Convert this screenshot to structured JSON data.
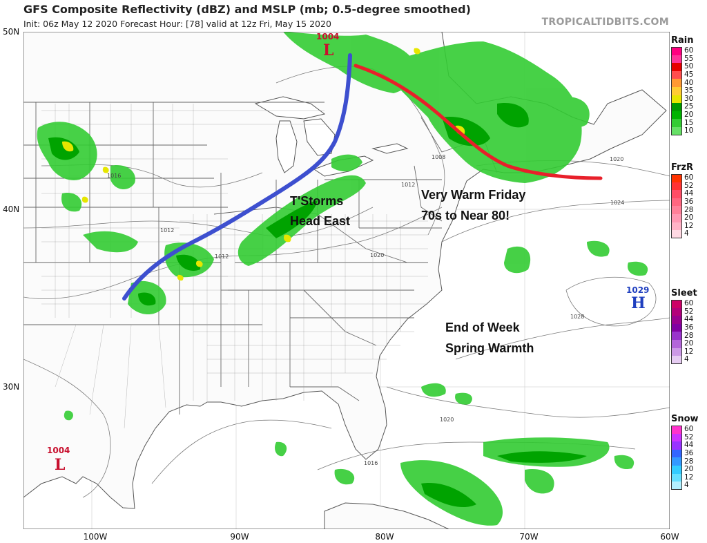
{
  "header": {
    "title": "GFS Composite Reflectivity (dBZ) and MSLP (mb; 0.5-degree smoothed)",
    "subtitle": "Init: 06z May 12 2020   Forecast Hour: [78]   valid at 12z Fri, May 15 2020",
    "site": "TROPICALTIDBITS.COM"
  },
  "axes": {
    "lat_labels": [
      "50N",
      "40N",
      "30N"
    ],
    "lon_labels": [
      "100W",
      "90W",
      "80W",
      "70W",
      "60W"
    ]
  },
  "pressure_centers": [
    {
      "value": "1004",
      "letter": "L",
      "color": "#c8102e"
    },
    {
      "value": "1004",
      "letter": "L",
      "color": "#c8102e"
    },
    {
      "value": "1029",
      "letter": "H",
      "color": "#1f3fbf"
    }
  ],
  "isobar_labels": [
    "1016",
    "1012",
    "1012",
    "1012",
    "1020",
    "1020",
    "1024",
    "1028",
    "1020",
    "1016",
    "1008"
  ],
  "annotations": {
    "storms": "T'Storms\nHead East",
    "warm_friday": "Very Warm Friday\n70s to Near 80!",
    "spring": "End of Week\nSpring Warmth"
  },
  "legends": [
    {
      "title": "Rain",
      "labels": [
        "60",
        "55",
        "50",
        "45",
        "40",
        "35",
        "30",
        "25",
        "20",
        "15",
        "10"
      ],
      "colors": [
        "#ff0080",
        "#ff3399",
        "#e60000",
        "#ff4d4d",
        "#ff9933",
        "#ffcc33",
        "#e6e600",
        "#009900",
        "#00b300",
        "#33cc33",
        "#66e066"
      ]
    },
    {
      "title": "FrzR",
      "labels": [
        "60",
        "52",
        "44",
        "36",
        "28",
        "20",
        "12",
        "4"
      ],
      "colors": [
        "#ff3300",
        "#ff3333",
        "#ff4d66",
        "#ff6680",
        "#ff8099",
        "#ff99b3",
        "#ffb3c6",
        "#ffd9e3"
      ]
    },
    {
      "title": "Sleet",
      "labels": [
        "60",
        "52",
        "44",
        "36",
        "28",
        "20",
        "12",
        "4"
      ],
      "colors": [
        "#cc0066",
        "#b3007a",
        "#99008f",
        "#8000a3",
        "#9933cc",
        "#b366d9",
        "#cc99e6",
        "#e6ccf2"
      ]
    },
    {
      "title": "Snow",
      "labels": [
        "60",
        "52",
        "44",
        "36",
        "28",
        "20",
        "12",
        "4"
      ],
      "colors": [
        "#ff33cc",
        "#cc33ff",
        "#9933ff",
        "#3366ff",
        "#3399ff",
        "#33ccff",
        "#66e0ff",
        "#b3f0ff"
      ]
    }
  ]
}
